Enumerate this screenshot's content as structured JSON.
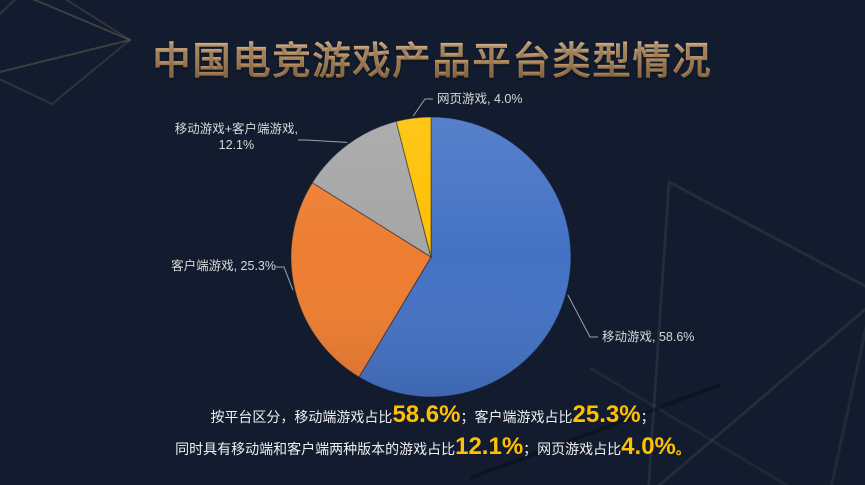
{
  "title": "中国电竞游戏产品平台类型情况",
  "background_color": "#121c2e",
  "title_color": "#c99e6e",
  "highlight_color": "#ffc000",
  "chart_data": {
    "type": "pie",
    "title": "中国电竞游戏产品平台类型情况",
    "direction": "clockwise",
    "start_angle_deg": 0,
    "legend_position": "none",
    "data_labels": "outside-with-leader-lines",
    "slices": [
      {
        "id": "mobile",
        "label": "移动游戏",
        "value": 58.6,
        "color": "#4472C4",
        "display": "移动游戏, 58.6%"
      },
      {
        "id": "client",
        "label": "客户端游戏",
        "value": 25.3,
        "color": "#ED7D31",
        "display": "客户端游戏, 25.3%"
      },
      {
        "id": "mobile-client",
        "label": "移动游戏+客户端游戏",
        "value": 12.1,
        "color": "#A5A5A5",
        "display": "移动游戏+客户端游戏, 12.1%",
        "display_line1": "移动游戏+客户端游戏,",
        "display_line2": "12.1%"
      },
      {
        "id": "web",
        "label": "网页游戏",
        "value": 4.0,
        "color": "#FFC000",
        "display": "网页游戏, 4.0%"
      }
    ]
  },
  "summary": {
    "line1": [
      {
        "t": "按平台区分，移动端游戏占比",
        "hl": false
      },
      {
        "t": "58.6%",
        "hl": true
      },
      {
        "t": "；客户端游戏占比",
        "hl": false
      },
      {
        "t": "25.3%",
        "hl": true
      },
      {
        "t": "；",
        "hl": false
      }
    ],
    "line2": [
      {
        "t": "同时具有移动端和客户端两种版本的游戏占比",
        "hl": false
      },
      {
        "t": "12.1%",
        "hl": true
      },
      {
        "t": "；网页游戏占比",
        "hl": false
      },
      {
        "t": "4.0%",
        "hl": true
      },
      {
        "t": "。",
        "hl": true,
        "small": true
      }
    ]
  }
}
